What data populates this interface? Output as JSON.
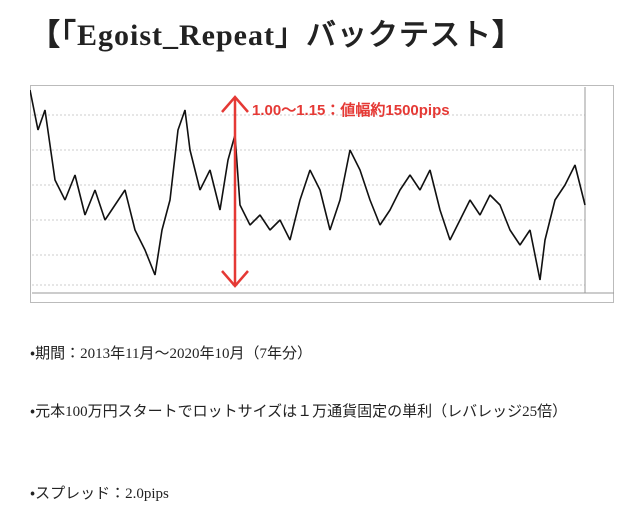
{
  "header": {
    "title": "【「Egoist_Repeat」バックテスト】"
  },
  "chart_image": {
    "annotation": "1.00～1.15：値幅約1500pips"
  },
  "list": [
    "・期間：2013年11月～2020年10月（7年分）",
    "・元本100万円スタートでロットサイズは１万通貨固定の単利（レバレッジ25倍）",
    "・スプレッド：2.0pips"
  ]
}
